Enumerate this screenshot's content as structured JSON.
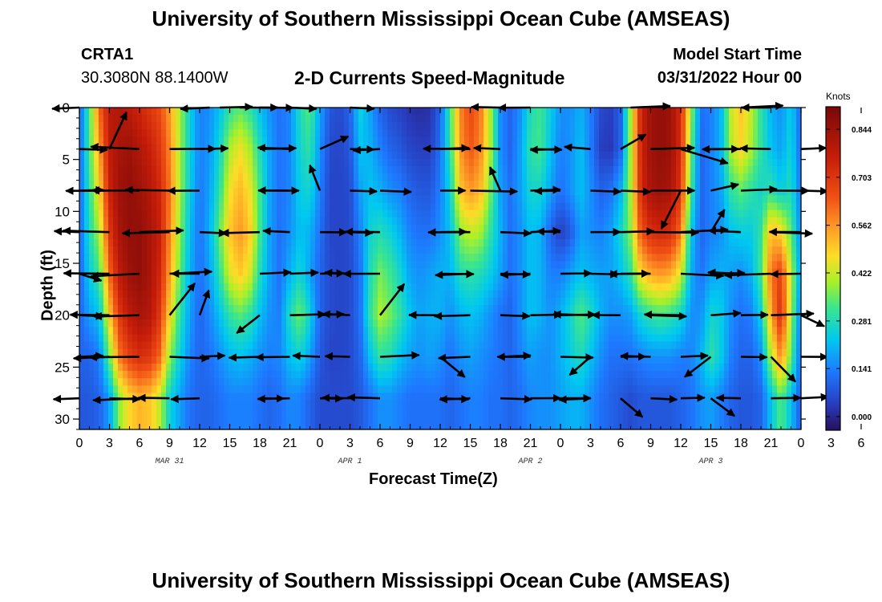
{
  "header": {
    "title": "University of Southern Mississippi Ocean Cube (AMSEAS)",
    "station": "CRTA1",
    "coordinates": "30.3080N  88.1400W",
    "subtitle": "2-D Currents Speed-Magnitude",
    "model_start_label": "Model Start Time",
    "model_start_value": "03/31/2022 Hour 00",
    "footer_title": "University of Southern Mississippi Ocean Cube (AMSEAS)"
  },
  "chart_data": {
    "type": "heatmap",
    "title": "2-D Currents Speed-Magnitude",
    "xlabel": "Forecast Time(Z)",
    "ylabel": "Depth (ft)",
    "xlim": [
      0,
      72
    ],
    "ylim": [
      31,
      0
    ],
    "x_tick_labels": [
      "0",
      "3",
      "6",
      "9",
      "12",
      "15",
      "18",
      "21",
      "0",
      "3",
      "6",
      "9",
      "12",
      "15",
      "18",
      "21",
      "0",
      "3",
      "6",
      "9",
      "12",
      "15",
      "18",
      "21",
      "0",
      "3",
      "6",
      "9",
      "12",
      "15",
      "18",
      "21",
      "0"
    ],
    "y_ticks": [
      0,
      5,
      10,
      15,
      20,
      25,
      30
    ],
    "day_labels": [
      {
        "label": "MAR 31",
        "hour": 9
      },
      {
        "label": "APR 1",
        "hour": 27
      },
      {
        "label": "APR 2",
        "hour": 45
      },
      {
        "label": "APR 3",
        "hour": 63
      }
    ],
    "colorbar": {
      "units": "Knots",
      "min": -0.04,
      "max": 0.91,
      "tick_values": [
        0.844,
        0.703,
        0.562,
        0.422,
        0.281,
        0.141,
        0.0
      ],
      "tick_labels": [
        "0.844",
        "0.703",
        "0.562",
        "0.422",
        "0.281",
        "0.141",
        "0.000"
      ]
    },
    "depths_ft": [
      0,
      4,
      8,
      12,
      16,
      20,
      24,
      28
    ],
    "speed_columns_knots": [
      {
        "hour": 0,
        "speeds": [
          0.1,
          0.1,
          0.1,
          0.1,
          0.1,
          0.1,
          0.1,
          0.08
        ]
      },
      {
        "hour": 1,
        "speeds": [
          0.32,
          0.32,
          0.3,
          0.28,
          0.24,
          0.18,
          0.1,
          0.08
        ]
      },
      {
        "hour": 2,
        "speeds": [
          0.62,
          0.55,
          0.48,
          0.4,
          0.32,
          0.22,
          0.14,
          0.1
        ]
      },
      {
        "hour": 3,
        "speeds": [
          0.78,
          0.78,
          0.75,
          0.7,
          0.62,
          0.5,
          0.35,
          0.18
        ]
      },
      {
        "hour": 4,
        "speeds": [
          0.8,
          0.82,
          0.84,
          0.82,
          0.78,
          0.7,
          0.6,
          0.38
        ]
      },
      {
        "hour": 5,
        "speeds": [
          0.78,
          0.84,
          0.86,
          0.86,
          0.84,
          0.78,
          0.68,
          0.48
        ]
      },
      {
        "hour": 6,
        "speeds": [
          0.74,
          0.8,
          0.84,
          0.86,
          0.86,
          0.82,
          0.72,
          0.52
        ]
      },
      {
        "hour": 7,
        "speeds": [
          0.7,
          0.76,
          0.8,
          0.82,
          0.82,
          0.8,
          0.7,
          0.5
        ]
      },
      {
        "hour": 8,
        "speeds": [
          0.66,
          0.7,
          0.74,
          0.76,
          0.74,
          0.7,
          0.62,
          0.42
        ]
      },
      {
        "hour": 9,
        "speeds": [
          0.55,
          0.58,
          0.6,
          0.58,
          0.55,
          0.48,
          0.38,
          0.25
        ]
      },
      {
        "hour": 10,
        "speeds": [
          0.4,
          0.4,
          0.4,
          0.38,
          0.35,
          0.3,
          0.25,
          0.18
        ]
      },
      {
        "hour": 11,
        "speeds": [
          0.25,
          0.25,
          0.24,
          0.22,
          0.2,
          0.18,
          0.15,
          0.12
        ]
      },
      {
        "hour": 12,
        "speeds": [
          0.14,
          0.14,
          0.13,
          0.12,
          0.12,
          0.1,
          0.1,
          0.1
        ]
      },
      {
        "hour": 13,
        "speeds": [
          0.16,
          0.17,
          0.18,
          0.2,
          0.18,
          0.15,
          0.12,
          0.1
        ]
      },
      {
        "hour": 14,
        "speeds": [
          0.22,
          0.26,
          0.3,
          0.35,
          0.3,
          0.22,
          0.16,
          0.12
        ]
      },
      {
        "hour": 15,
        "speeds": [
          0.3,
          0.4,
          0.46,
          0.5,
          0.44,
          0.3,
          0.2,
          0.14
        ]
      },
      {
        "hour": 16,
        "speeds": [
          0.34,
          0.46,
          0.52,
          0.56,
          0.5,
          0.34,
          0.22,
          0.14
        ]
      },
      {
        "hour": 17,
        "speeds": [
          0.3,
          0.4,
          0.46,
          0.5,
          0.44,
          0.3,
          0.2,
          0.14
        ]
      },
      {
        "hour": 18,
        "speeds": [
          0.22,
          0.28,
          0.32,
          0.32,
          0.28,
          0.22,
          0.16,
          0.12
        ]
      },
      {
        "hour": 19,
        "speeds": [
          0.16,
          0.18,
          0.18,
          0.18,
          0.18,
          0.16,
          0.14,
          0.1
        ]
      },
      {
        "hour": 20,
        "speeds": [
          0.12,
          0.12,
          0.12,
          0.12,
          0.12,
          0.14,
          0.15,
          0.12
        ]
      },
      {
        "hour": 21,
        "speeds": [
          0.15,
          0.15,
          0.15,
          0.16,
          0.2,
          0.28,
          0.22,
          0.15
        ]
      },
      {
        "hour": 22,
        "speeds": [
          0.28,
          0.26,
          0.24,
          0.22,
          0.26,
          0.36,
          0.25,
          0.14
        ]
      },
      {
        "hour": 23,
        "speeds": [
          0.34,
          0.3,
          0.26,
          0.2,
          0.18,
          0.25,
          0.18,
          0.1
        ]
      },
      {
        "hour": 24,
        "speeds": [
          0.18,
          0.16,
          0.14,
          0.12,
          0.1,
          0.1,
          0.08,
          0.06
        ]
      },
      {
        "hour": 25,
        "speeds": [
          0.08,
          0.06,
          0.05,
          0.05,
          0.06,
          0.06,
          0.05,
          0.06
        ]
      },
      {
        "hour": 26,
        "speeds": [
          0.06,
          0.05,
          0.05,
          0.05,
          0.05,
          0.05,
          0.05,
          0.06
        ]
      },
      {
        "hour": 27,
        "speeds": [
          0.1,
          0.08,
          0.06,
          0.06,
          0.06,
          0.06,
          0.06,
          0.06
        ]
      },
      {
        "hour": 28,
        "speeds": [
          0.25,
          0.22,
          0.18,
          0.14,
          0.12,
          0.12,
          0.1,
          0.08
        ]
      },
      {
        "hour": 29,
        "speeds": [
          0.18,
          0.2,
          0.22,
          0.25,
          0.28,
          0.3,
          0.22,
          0.12
        ]
      },
      {
        "hour": 30,
        "speeds": [
          0.1,
          0.14,
          0.2,
          0.28,
          0.36,
          0.4,
          0.3,
          0.16
        ]
      },
      {
        "hour": 31,
        "speeds": [
          0.06,
          0.1,
          0.16,
          0.25,
          0.32,
          0.36,
          0.28,
          0.16
        ]
      },
      {
        "hour": 32,
        "speeds": [
          0.04,
          0.08,
          0.14,
          0.2,
          0.26,
          0.3,
          0.22,
          0.14
        ]
      },
      {
        "hour": 33,
        "speeds": [
          0.02,
          0.05,
          0.1,
          0.14,
          0.18,
          0.22,
          0.18,
          0.12
        ]
      },
      {
        "hour": 34,
        "speeds": [
          0.01,
          0.04,
          0.08,
          0.12,
          0.16,
          0.18,
          0.16,
          0.12
        ]
      },
      {
        "hour": 35,
        "speeds": [
          0.02,
          0.04,
          0.08,
          0.12,
          0.18,
          0.2,
          0.18,
          0.12
        ]
      },
      {
        "hour": 36,
        "speeds": [
          0.1,
          0.12,
          0.14,
          0.16,
          0.2,
          0.2,
          0.16,
          0.12
        ]
      },
      {
        "hour": 37,
        "speeds": [
          0.32,
          0.3,
          0.25,
          0.22,
          0.2,
          0.16,
          0.12,
          0.1
        ]
      },
      {
        "hour": 38,
        "speeds": [
          0.58,
          0.56,
          0.5,
          0.38,
          0.28,
          0.2,
          0.16,
          0.12
        ]
      },
      {
        "hour": 39,
        "speeds": [
          0.66,
          0.64,
          0.56,
          0.42,
          0.3,
          0.22,
          0.18,
          0.14
        ]
      },
      {
        "hour": 40,
        "speeds": [
          0.6,
          0.58,
          0.52,
          0.4,
          0.28,
          0.2,
          0.16,
          0.14
        ]
      },
      {
        "hour": 41,
        "speeds": [
          0.4,
          0.4,
          0.36,
          0.3,
          0.24,
          0.16,
          0.14,
          0.12
        ]
      },
      {
        "hour": 42,
        "speeds": [
          0.16,
          0.16,
          0.18,
          0.2,
          0.18,
          0.12,
          0.12,
          0.12
        ]
      },
      {
        "hour": 43,
        "speeds": [
          0.1,
          0.1,
          0.12,
          0.12,
          0.12,
          0.1,
          0.1,
          0.1
        ]
      },
      {
        "hour": 44,
        "speeds": [
          0.16,
          0.18,
          0.18,
          0.16,
          0.16,
          0.16,
          0.14,
          0.12
        ]
      },
      {
        "hour": 45,
        "speeds": [
          0.28,
          0.3,
          0.26,
          0.22,
          0.22,
          0.22,
          0.18,
          0.15
        ]
      },
      {
        "hour": 46,
        "speeds": [
          0.32,
          0.32,
          0.26,
          0.2,
          0.2,
          0.2,
          0.16,
          0.16
        ]
      },
      {
        "hour": 47,
        "speeds": [
          0.24,
          0.22,
          0.18,
          0.1,
          0.14,
          0.16,
          0.16,
          0.16
        ]
      },
      {
        "hour": 48,
        "speeds": [
          0.16,
          0.14,
          0.12,
          0.04,
          0.14,
          0.2,
          0.2,
          0.18
        ]
      },
      {
        "hour": 49,
        "speeds": [
          0.16,
          0.16,
          0.16,
          0.08,
          0.18,
          0.26,
          0.24,
          0.2
        ]
      },
      {
        "hour": 50,
        "speeds": [
          0.2,
          0.22,
          0.22,
          0.18,
          0.22,
          0.34,
          0.28,
          0.2
        ]
      },
      {
        "hour": 51,
        "speeds": [
          0.14,
          0.14,
          0.16,
          0.16,
          0.2,
          0.28,
          0.22,
          0.16
        ]
      },
      {
        "hour": 52,
        "speeds": [
          0.06,
          0.04,
          0.1,
          0.14,
          0.18,
          0.2,
          0.16,
          0.12
        ]
      },
      {
        "hour": 53,
        "speeds": [
          0.04,
          0.03,
          0.12,
          0.18,
          0.18,
          0.16,
          0.12,
          0.1
        ]
      },
      {
        "hour": 54,
        "speeds": [
          0.1,
          0.1,
          0.2,
          0.26,
          0.22,
          0.16,
          0.12,
          0.08
        ]
      },
      {
        "hour": 55,
        "speeds": [
          0.4,
          0.4,
          0.4,
          0.38,
          0.3,
          0.18,
          0.12,
          0.06
        ]
      },
      {
        "hour": 56,
        "speeds": [
          0.74,
          0.74,
          0.72,
          0.64,
          0.48,
          0.26,
          0.14,
          0.08
        ]
      },
      {
        "hour": 57,
        "speeds": [
          0.84,
          0.84,
          0.82,
          0.72,
          0.54,
          0.3,
          0.16,
          0.08
        ]
      },
      {
        "hour": 58,
        "speeds": [
          0.86,
          0.86,
          0.84,
          0.74,
          0.56,
          0.32,
          0.16,
          0.08
        ]
      },
      {
        "hour": 59,
        "speeds": [
          0.84,
          0.84,
          0.82,
          0.72,
          0.54,
          0.3,
          0.16,
          0.08
        ]
      },
      {
        "hour": 60,
        "speeds": [
          0.72,
          0.72,
          0.7,
          0.6,
          0.44,
          0.26,
          0.14,
          0.1
        ]
      },
      {
        "hour": 61,
        "speeds": [
          0.4,
          0.36,
          0.32,
          0.24,
          0.2,
          0.16,
          0.14,
          0.12
        ]
      },
      {
        "hour": 62,
        "speeds": [
          0.12,
          0.1,
          0.1,
          0.1,
          0.12,
          0.16,
          0.2,
          0.16
        ]
      },
      {
        "hour": 63,
        "speeds": [
          0.14,
          0.14,
          0.14,
          0.14,
          0.18,
          0.26,
          0.3,
          0.18
        ]
      },
      {
        "hour": 64,
        "speeds": [
          0.2,
          0.2,
          0.18,
          0.16,
          0.2,
          0.24,
          0.24,
          0.14
        ]
      },
      {
        "hour": 65,
        "speeds": [
          0.42,
          0.4,
          0.3,
          0.22,
          0.18,
          0.16,
          0.14,
          0.1
        ]
      },
      {
        "hour": 66,
        "speeds": [
          0.5,
          0.48,
          0.34,
          0.24,
          0.16,
          0.12,
          0.1,
          0.08
        ]
      },
      {
        "hour": 67,
        "speeds": [
          0.42,
          0.4,
          0.3,
          0.24,
          0.2,
          0.14,
          0.1,
          0.08
        ]
      },
      {
        "hour": 68,
        "speeds": [
          0.3,
          0.3,
          0.26,
          0.3,
          0.32,
          0.24,
          0.16,
          0.1
        ]
      },
      {
        "hour": 69,
        "speeds": [
          0.2,
          0.22,
          0.3,
          0.52,
          0.6,
          0.54,
          0.4,
          0.22
        ]
      },
      {
        "hour": 70,
        "speeds": [
          0.16,
          0.18,
          0.24,
          0.48,
          0.68,
          0.72,
          0.58,
          0.34
        ]
      },
      {
        "hour": 71,
        "speeds": [
          0.24,
          0.26,
          0.28,
          0.34,
          0.42,
          0.4,
          0.34,
          0.22
        ]
      },
      {
        "hour": 72,
        "speeds": [
          0.1,
          0.1,
          0.12,
          0.14,
          0.16,
          0.12,
          0.1,
          0.08
        ]
      }
    ],
    "vector_rows": [
      {
        "depth": 0,
        "hours": [
          0,
          13,
          14,
          16,
          18,
          21,
          27,
          42,
          45,
          55,
          66,
          69
        ]
      },
      {
        "depth": 4,
        "hours": [
          0,
          3,
          6,
          9,
          12,
          18,
          21,
          24,
          27,
          30,
          36,
          39,
          42,
          45,
          48,
          51,
          54,
          57,
          60,
          63,
          66,
          69,
          72
        ]
      },
      {
        "depth": 8,
        "hours": [
          0,
          3,
          6,
          9,
          12,
          18,
          21,
          24,
          27,
          30,
          36,
          39,
          42,
          45,
          48,
          51,
          54,
          57,
          60,
          63,
          66,
          69,
          72
        ]
      },
      {
        "depth": 12,
        "hours": [
          0,
          3,
          6,
          9,
          12,
          18,
          21,
          24,
          27,
          30,
          36,
          39,
          42,
          45,
          48,
          51,
          54,
          57,
          60,
          63,
          66,
          69,
          72
        ]
      },
      {
        "depth": 16,
        "hours": [
          0,
          3,
          6,
          9,
          12,
          18,
          21,
          24,
          27,
          30,
          36,
          39,
          42,
          45,
          48,
          51,
          54,
          57,
          60,
          63,
          66,
          69,
          72
        ]
      },
      {
        "depth": 20,
        "hours": [
          0,
          3,
          6,
          9,
          12,
          18,
          21,
          24,
          27,
          30,
          36,
          39,
          42,
          45,
          48,
          51,
          54,
          57,
          60,
          63,
          66,
          69,
          72
        ]
      },
      {
        "depth": 24,
        "hours": [
          0,
          3,
          6,
          9,
          12,
          18,
          21,
          24,
          27,
          30,
          36,
          39,
          42,
          45,
          48,
          51,
          54,
          57,
          60,
          63,
          66,
          69,
          72
        ]
      },
      {
        "depth": 28,
        "hours": [
          0,
          3,
          6,
          9,
          12,
          18,
          21,
          24,
          27,
          30,
          36,
          39,
          42,
          45,
          48,
          51,
          54,
          57,
          60,
          63,
          66,
          69,
          72
        ]
      }
    ]
  }
}
